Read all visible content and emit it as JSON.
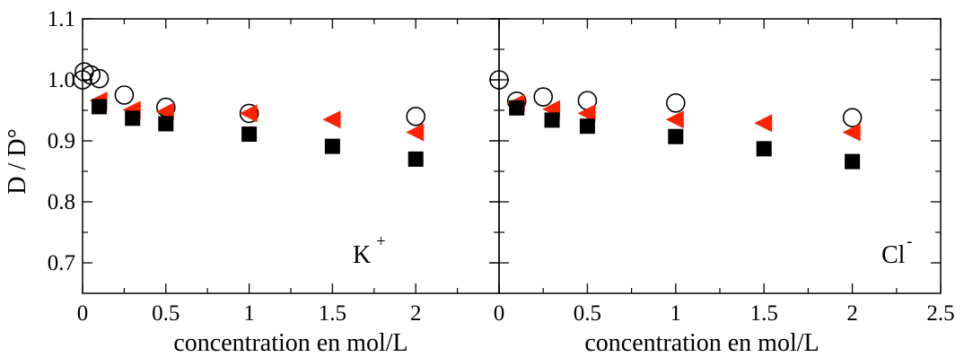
{
  "chart_data": {
    "type": "scatter",
    "ylabel": "D / D°",
    "ylim": [
      0.65,
      1.1
    ],
    "yticks": [
      "0.7",
      "0.8",
      "0.9",
      "1.0",
      "1.1"
    ],
    "grid": false,
    "panels": [
      {
        "label": "K",
        "label_sup": "+",
        "xlabel": "concentration en mol/L",
        "xlim": [
          0,
          2.5
        ],
        "xticks": [
          "0",
          "0.5",
          "1",
          "1.5",
          "2"
        ],
        "series": [
          {
            "marker": "open-circle",
            "color": "#000000",
            "points": [
              [
                0.0,
                1.0
              ],
              [
                0.01,
                1.013
              ],
              [
                0.05,
                1.008
              ],
              [
                0.1,
                1.002
              ],
              [
                0.25,
                0.975
              ],
              [
                0.5,
                0.955
              ],
              [
                1.0,
                0.945
              ],
              [
                2.0,
                0.94
              ]
            ]
          },
          {
            "marker": "left-triangle",
            "color": "#ff2200",
            "points": [
              [
                0.1,
                0.966
              ],
              [
                0.3,
                0.951
              ],
              [
                0.5,
                0.948
              ],
              [
                1.0,
                0.945
              ],
              [
                1.5,
                0.935
              ],
              [
                2.0,
                0.914
              ]
            ]
          },
          {
            "marker": "filled-square",
            "color": "#000000",
            "points": [
              [
                0.1,
                0.956
              ],
              [
                0.3,
                0.937
              ],
              [
                0.5,
                0.928
              ],
              [
                1.0,
                0.911
              ],
              [
                1.5,
                0.891
              ],
              [
                2.0,
                0.87
              ]
            ]
          }
        ]
      },
      {
        "label": "Cl",
        "label_sup": "-",
        "xlabel": "concentration en mol/L",
        "xlim": [
          0,
          2.5
        ],
        "xticks": [
          "0",
          "0.5",
          "1",
          "1.5",
          "2",
          "2.5"
        ],
        "series": [
          {
            "marker": "open-circle",
            "color": "#000000",
            "points": [
              [
                0.0,
                1.0
              ],
              [
                0.1,
                0.965
              ],
              [
                0.25,
                0.972
              ],
              [
                0.5,
                0.966
              ],
              [
                1.0,
                0.962
              ],
              [
                2.0,
                0.938
              ]
            ]
          },
          {
            "marker": "left-triangle",
            "color": "#ff2200",
            "points": [
              [
                0.1,
                0.962
              ],
              [
                0.3,
                0.952
              ],
              [
                0.5,
                0.945
              ],
              [
                1.0,
                0.935
              ],
              [
                1.5,
                0.929
              ],
              [
                2.0,
                0.914
              ]
            ]
          },
          {
            "marker": "filled-square",
            "color": "#000000",
            "points": [
              [
                0.1,
                0.954
              ],
              [
                0.3,
                0.934
              ],
              [
                0.5,
                0.924
              ],
              [
                1.0,
                0.907
              ],
              [
                1.5,
                0.887
              ],
              [
                2.0,
                0.866
              ]
            ]
          }
        ]
      }
    ]
  }
}
